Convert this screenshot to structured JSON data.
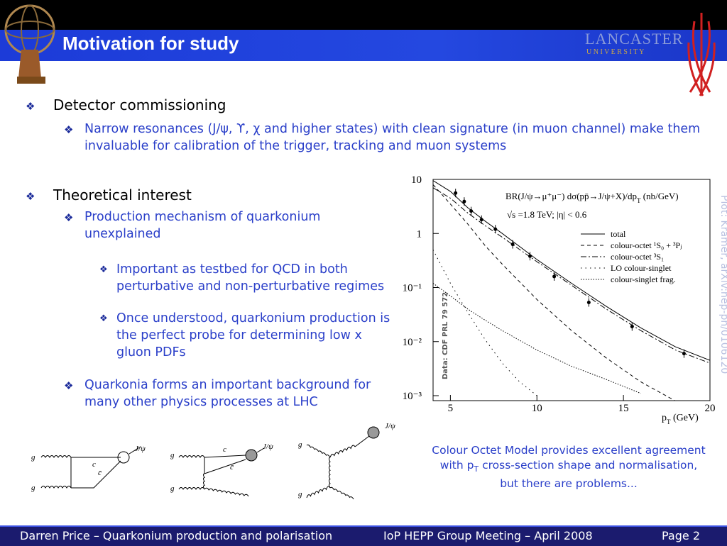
{
  "header": {
    "title": "Motivation for study",
    "logo_name": "LANCASTER",
    "logo_sub": "U N I V E R S I T Y"
  },
  "bullets": [
    {
      "text": "Detector commissioning",
      "children": [
        {
          "text": "Narrow resonances (J/ψ, ϒ, χ and higher states) with clean signature (in muon channel) make them invaluable for calibration of the trigger, tracking and muon systems"
        }
      ]
    },
    {
      "text": "Theoretical interest",
      "children": [
        {
          "text": "Production mechanism of quarkonium unexplained",
          "children": [
            {
              "text": "Important as testbed for QCD in both perturbative and non-perturbative regimes"
            },
            {
              "text": "Once understood, quarkonium production is the perfect probe for determining low x gluon PDFs"
            }
          ]
        },
        {
          "text": "Quarkonia forms an important background for many other physics processes at LHC"
        }
      ]
    }
  ],
  "plot": {
    "type": "line",
    "title": [
      "BR(J/ψ→μ⁺μ⁻) dσ(pp̄→J/ψ+X)/dp",
      "T",
      " (nb/GeV)"
    ],
    "subtitle": "√s =1.8 TeV; |η| < 0.6",
    "x_label": [
      "p",
      "T",
      " (GeV)"
    ],
    "credit": "Plot: Kramer, arXiv:hep-ph/0106120",
    "data_note": "Data: CDF PRL 79 572",
    "xlim": [
      4,
      20
    ],
    "xticks": [
      5,
      10,
      15,
      20
    ],
    "ylim": [
      0.001,
      10
    ],
    "log_y": true,
    "yticks": [
      {
        "value": 10,
        "label": "10"
      },
      {
        "value": 1,
        "label": "1"
      },
      {
        "value": 0.1,
        "label": "10⁻¹"
      },
      {
        "value": 0.01,
        "label": "10⁻²"
      },
      {
        "value": 0.001,
        "label": "10⁻³"
      }
    ],
    "points": {
      "x": [
        5.3,
        5.8,
        6.2,
        6.8,
        7.6,
        8.6,
        9.6,
        11,
        13,
        15.5,
        18.5
      ],
      "values": [
        5.6,
        3.9,
        2.6,
        1.8,
        1.2,
        0.63,
        0.38,
        0.16,
        0.053,
        0.019,
        0.006
      ]
    },
    "series": [
      {
        "name": "total",
        "dash": "none",
        "x": [
          4,
          5,
          6,
          7,
          8,
          10,
          12,
          14,
          16,
          18,
          20
        ],
        "values": [
          9.5,
          6,
          3,
          1.7,
          1,
          0.33,
          0.12,
          0.045,
          0.018,
          0.008,
          0.0045
        ]
      },
      {
        "name": "colour-octet ¹S₀ + ³Pⱼ",
        "dash": "5,4",
        "x": [
          4,
          5,
          6,
          7,
          8,
          10,
          12,
          14,
          16,
          18
        ],
        "values": [
          8,
          3.5,
          1.5,
          0.6,
          0.27,
          0.06,
          0.016,
          0.005,
          0.0018,
          0.0008
        ]
      },
      {
        "name": "colour-octet ³S₁",
        "dash": "8,3,2,3",
        "x": [
          4,
          5,
          6,
          7,
          8,
          10,
          12,
          14,
          16,
          18,
          20
        ],
        "values": [
          7,
          4.5,
          2.4,
          1.4,
          0.85,
          0.3,
          0.11,
          0.04,
          0.016,
          0.007,
          0.004
        ]
      },
      {
        "name": "LO colour-singlet",
        "dash": "1.5,5",
        "x": [
          4,
          5,
          6,
          7,
          8,
          9,
          10
        ],
        "values": [
          0.5,
          0.12,
          0.035,
          0.011,
          0.004,
          0.0018,
          0.001
        ]
      },
      {
        "name": "colour-singlet frag.",
        "dash": "1.5,2",
        "x": [
          4,
          5,
          6,
          7,
          8,
          10,
          12,
          14,
          16
        ],
        "values": [
          0.12,
          0.07,
          0.04,
          0.025,
          0.016,
          0.007,
          0.0035,
          0.002,
          0.0011
        ]
      }
    ]
  },
  "caption": [
    "Colour Octet Model provides excellent agreement with p",
    "T",
    " cross-section shape and normalisation, but there are problems..."
  ],
  "diagrams": [
    {
      "labels": [
        "g",
        "g",
        "c",
        "c̄",
        "J/ψ"
      ]
    },
    {
      "labels": [
        "g",
        "g",
        "c",
        "c̄",
        "J/ψ"
      ]
    },
    {
      "labels": [
        "g",
        "g",
        "J/ψ"
      ]
    }
  ],
  "footer": {
    "left": "Darren Price – Quarkonium production and polarisation",
    "center": "IoP HEPP Group Meeting – April 2008",
    "right": "Page 2"
  }
}
